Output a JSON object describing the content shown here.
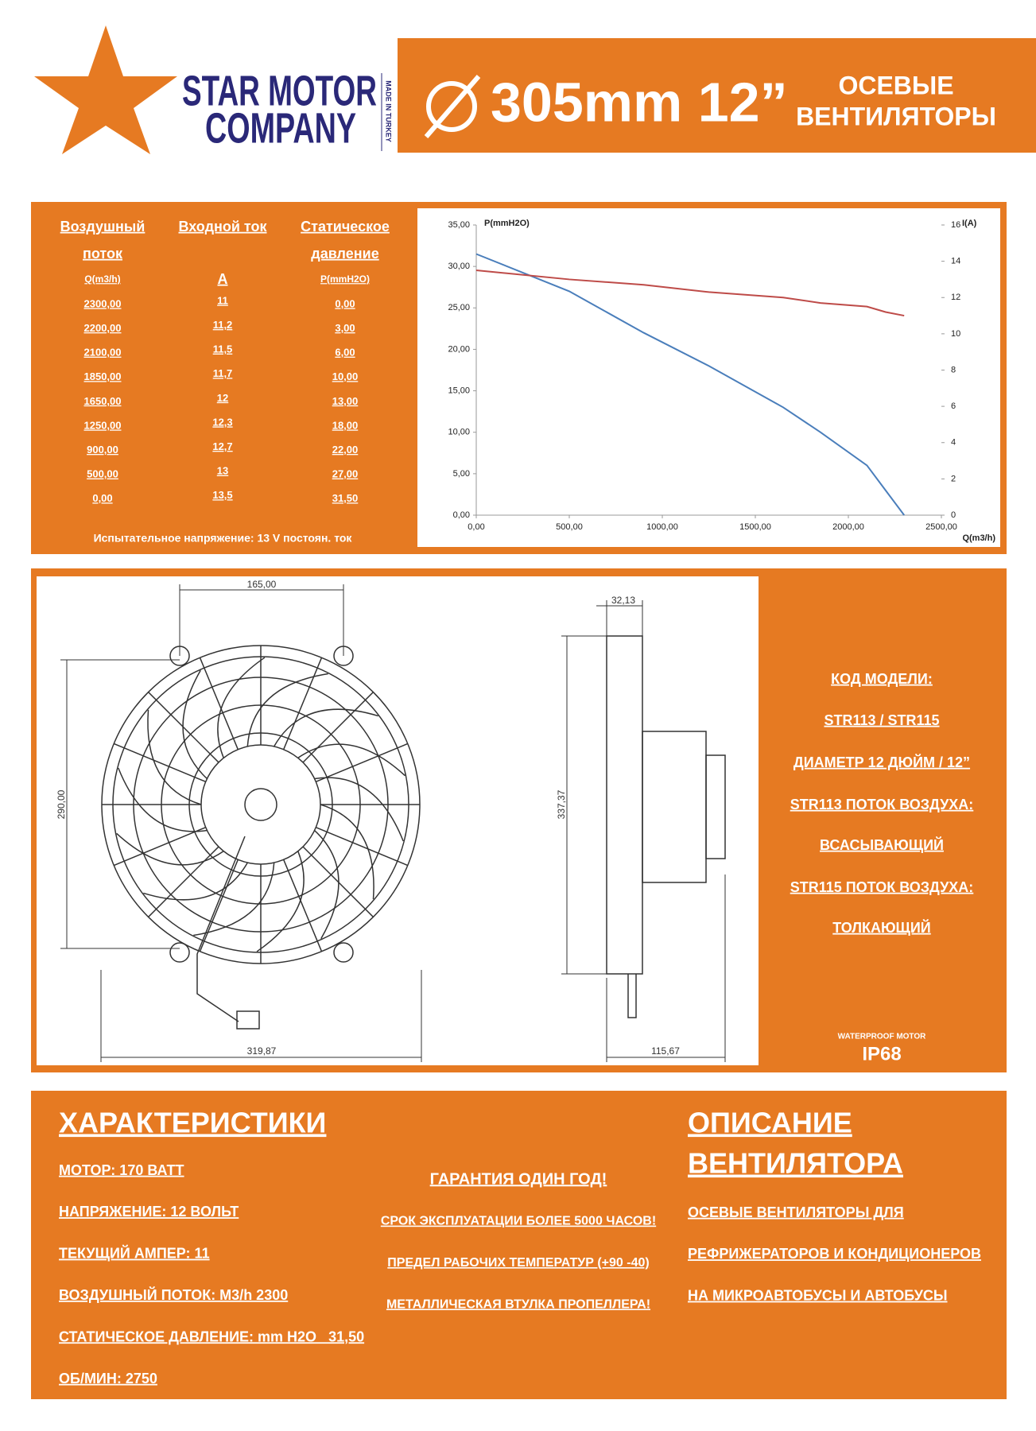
{
  "logo": {
    "line1": "STAR MOTOR",
    "line2": "COMPANY",
    "origin": "MADE IN TURKEY"
  },
  "header": {
    "size": "305mm 12”",
    "title_line1": "ОСЕВЫЕ",
    "title_line2": "ВЕНТИЛЯТОРЫ"
  },
  "table": {
    "headers": [
      [
        "Воздушный",
        "поток"
      ],
      [
        "Входной ток"
      ],
      [
        "Статическое",
        "давление"
      ]
    ],
    "units": [
      "Q(m3/h)",
      "A",
      "P(mmH2O)"
    ],
    "rows": [
      [
        "2300,00",
        "11",
        "0,00"
      ],
      [
        "2200,00",
        "11,2",
        "3,00"
      ],
      [
        "2100,00",
        "11,5",
        "6,00"
      ],
      [
        "1850,00",
        "11,7",
        "10,00"
      ],
      [
        "1650,00",
        "12",
        "13,00"
      ],
      [
        "1250,00",
        "12,3",
        "18,00"
      ],
      [
        "900,00",
        "12,7",
        "22,00"
      ],
      [
        "500,00",
        "13",
        "27,00"
      ],
      [
        "0,00",
        "13,5",
        "31,50"
      ]
    ],
    "note": "Испытательное напряжение: 13 V постоян. ток"
  },
  "chart": {
    "type": "line",
    "x": [
      2300,
      2200,
      2100,
      1850,
      1650,
      1250,
      900,
      500,
      0
    ],
    "xlim": [
      0,
      2500
    ],
    "xticks": [
      {
        "value": 0,
        "label": "0,00"
      },
      {
        "value": 500,
        "label": "500,00"
      },
      {
        "value": 1000,
        "label": "1000,00"
      },
      {
        "value": 1500,
        "label": "1500,00"
      },
      {
        "value": 2000,
        "label": "2000,00"
      },
      {
        "value": 2500,
        "label": "2500,00"
      }
    ],
    "ylim": [
      0,
      35
    ],
    "yticks": [
      {
        "value": 0,
        "label": "0,00"
      },
      {
        "value": 5,
        "label": "5,00"
      },
      {
        "value": 10,
        "label": "10,00"
      },
      {
        "value": 15,
        "label": "15,00"
      },
      {
        "value": 20,
        "label": "20,00"
      },
      {
        "value": 25,
        "label": "25,00"
      },
      {
        "value": 30,
        "label": "30,00"
      },
      {
        "value": 35,
        "label": "35,00"
      }
    ],
    "y2lim": [
      0,
      16
    ],
    "y2ticks": [
      0,
      2,
      4,
      6,
      8,
      10,
      12,
      14,
      16
    ],
    "x_label": "Q(m3/h)",
    "y_label": "P(mmH2O)",
    "y2_label": "I(A)",
    "series": [
      {
        "color": "#4a7ebb",
        "values": [
          0,
          3,
          6,
          10,
          13,
          18,
          22,
          27,
          31.5
        ]
      },
      {
        "color": "#be4b48",
        "axis": "y2",
        "values": [
          11,
          11.2,
          11.5,
          11.7,
          12,
          12.3,
          12.7,
          13,
          13.5
        ]
      }
    ]
  },
  "drawing": {
    "dimensions": [
      "165,00",
      "290,00",
      "319,87",
      "32,13",
      "337,37",
      "115,67"
    ]
  },
  "model": {
    "lines": [
      "КОД МОДЕЛИ:",
      "STR113 / STR115",
      "ДИАМЕТР 12 ДЮЙМ / 12”",
      "STR113 ПОТОК ВОЗДУХА:",
      "ВСАСЫВАЮЩИЙ",
      "STR115 ПОТОК ВОЗДУХА:",
      "ТОЛКАЮЩИЙ"
    ],
    "motor": "WATERPROOF MOTOR",
    "rating": "IP68"
  },
  "features": {
    "title": "ХАРАКТЕРИСТИКИ",
    "items": [
      "МОТОР: 170 ВАТТ",
      "НАПРЯЖЕНИЕ: 12 ВОЛЬТ",
      "ТЕКУЩИЙ АМПЕР: 11",
      "ВОЗДУШНЫЙ ПОТОК: M3/h 2300",
      "СТАТИЧЕСКОЕ ДАВЛЕНИЕ: mm H2O   31,50",
      "ОБ/МИН: 2750"
    ]
  },
  "highlights": {
    "items": [
      "ГАРАНТИЯ ОДИН ГОД!",
      "СРОК ЭКСПЛУАТАЦИИ БОЛЕЕ 5000 ЧАСОВ!",
      "ПРЕДЕЛ РАБОЧИХ ТЕМПЕРАТУР (+90 -40)",
      "МЕТАЛЛИЧЕСКАЯ ВТУЛКА ПРОПЕЛЛЕРА!"
    ]
  },
  "description": {
    "title": [
      "ОПИСАНИЕ",
      "ВЕНТИЛЯТОРА"
    ],
    "items": [
      "ОСЕВЫЕ ВЕНТИЛЯТОРЫ ДЛЯ",
      "РЕФРИЖЕРАТОРОВ И КОНДИЦИОНЕРОВ",
      "НА МИКРОАВТОБУСЫ И АВТОБУСЫ"
    ]
  }
}
